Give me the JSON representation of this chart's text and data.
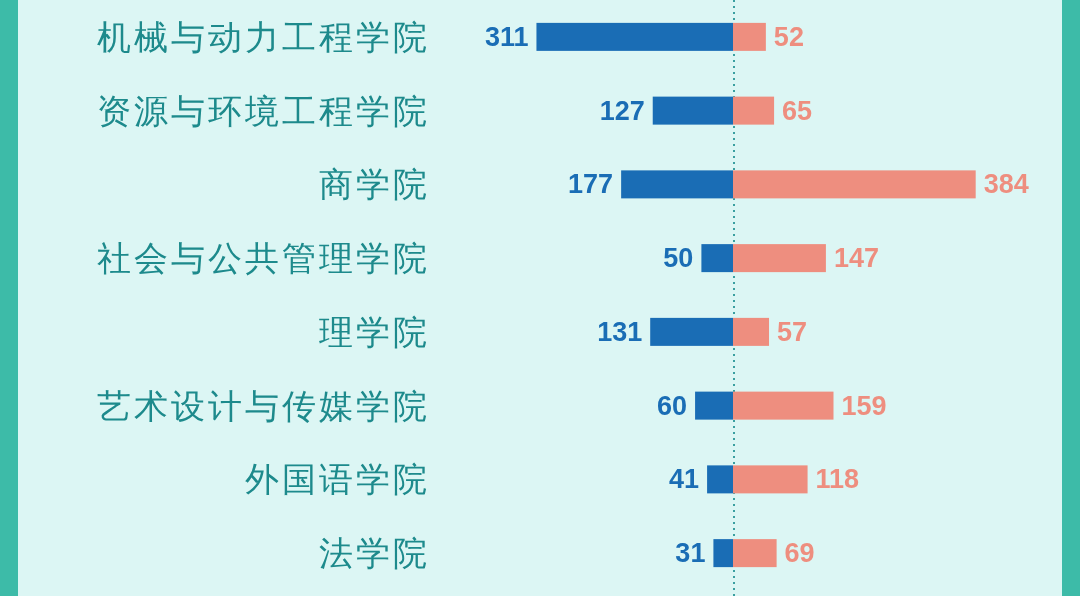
{
  "chart_data": [
    {
      "type": "bar",
      "orientation": "horizontal",
      "data_labels": true,
      "tick_labels": "y",
      "categories": [
        "机械与动力工程学院",
        "资源与环境工程学院",
        "商学院",
        "社会与公共管理学院",
        "理学院",
        "艺术设计与传媒学院",
        "外国语学院",
        "法学院"
      ],
      "series": [
        {
          "color": "#1a6db5",
          "values": [
            311,
            127,
            177,
            50,
            131,
            60,
            41,
            31
          ]
        }
      ]
    },
    {
      "type": "bar",
      "orientation": "horizontal",
      "data_labels": true,
      "tick_labels": false,
      "categories": [
        null,
        null,
        null,
        null,
        null,
        null,
        null,
        null
      ],
      "series": [
        {
          "color": "#ee8e7f",
          "values": [
            52,
            65,
            384,
            147,
            57,
            159,
            118,
            69
          ]
        }
      ],
      "ref_lines": [
        {
          "axis": "x",
          "value": 0,
          "color": "#3a9fa0",
          "line_style": "dotted"
        }
      ]
    }
  ]
}
